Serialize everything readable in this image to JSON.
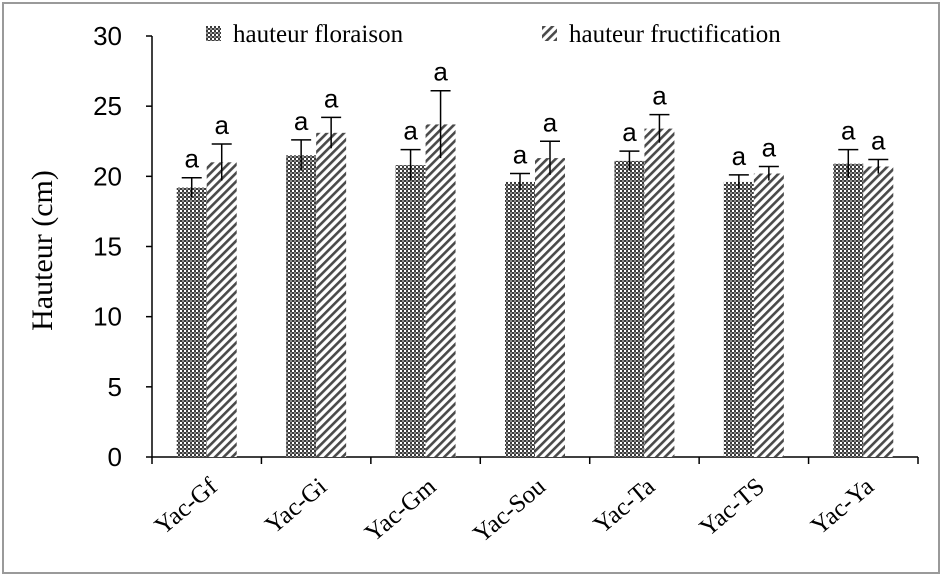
{
  "chart_data": {
    "type": "bar",
    "title": "",
    "xlabel": "",
    "ylabel": "Hauteur (cm)",
    "ylim": [
      0,
      30
    ],
    "yticks": [
      0,
      5,
      10,
      15,
      20,
      25,
      30
    ],
    "grid": false,
    "legend_position": "top",
    "categories": [
      "Yac-Gf",
      "Yac-Gi",
      "Yac-Gm",
      "Yac-Sou",
      "Yac-Ta",
      "Yac-TS",
      "Yac-Ya"
    ],
    "series": [
      {
        "name": "hauteur floraison",
        "pattern": "crosshatch",
        "values": [
          19.2,
          21.5,
          20.8,
          19.6,
          21.1,
          19.6,
          20.9
        ],
        "errors": [
          0.7,
          1.1,
          1.1,
          0.6,
          0.7,
          0.5,
          1.0
        ],
        "labels": [
          "a",
          "a",
          "a",
          "a",
          "a",
          "a",
          "a"
        ]
      },
      {
        "name": "hauteur fructification",
        "pattern": "diagonal",
        "values": [
          21.0,
          23.1,
          23.7,
          21.3,
          23.4,
          20.2,
          20.7
        ],
        "errors": [
          1.3,
          1.1,
          2.4,
          1.2,
          1.0,
          0.5,
          0.5
        ],
        "labels": [
          "a",
          "a",
          "a",
          "a",
          "a",
          "a",
          "a"
        ]
      }
    ],
    "colors": {
      "bar_fill": "#555555",
      "bar_bg": "#ffffff",
      "axis": "#000000"
    }
  }
}
